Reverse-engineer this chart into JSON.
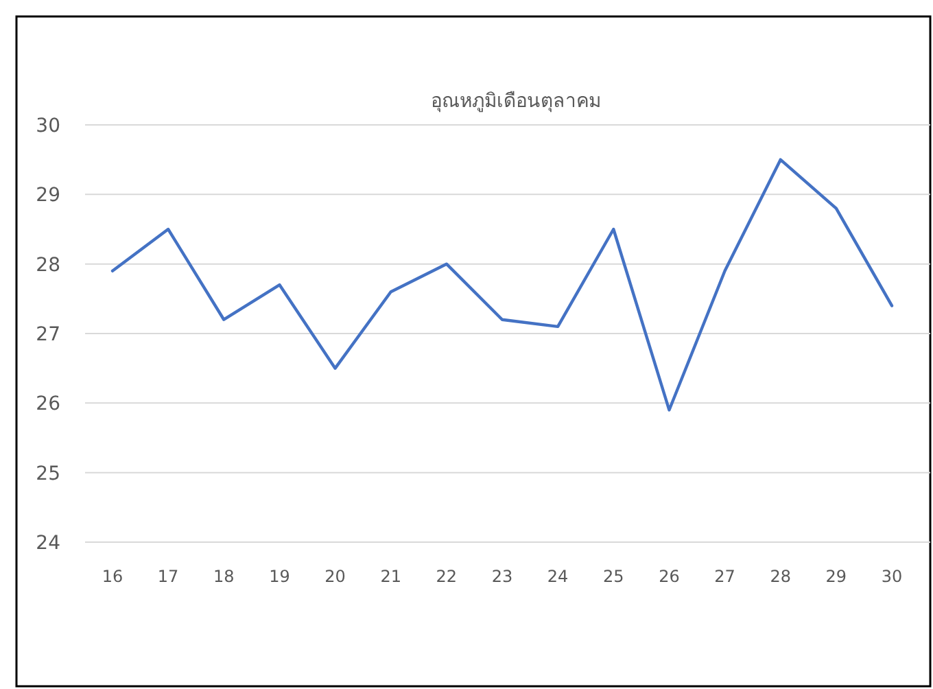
{
  "chart_data": {
    "type": "line",
    "title": "อุณหภูมิเดือนตุลาคม",
    "categories": [
      "16",
      "17",
      "18",
      "19",
      "20",
      "21",
      "22",
      "23",
      "24",
      "25",
      "26",
      "27",
      "28",
      "29",
      "30"
    ],
    "series": [
      {
        "color": "#4472c4",
        "values": [
          27.9,
          28.5,
          27.2,
          27.7,
          26.5,
          27.6,
          28.0,
          27.2,
          27.1,
          28.5,
          25.9,
          27.9,
          29.5,
          28.8,
          27.4
        ]
      }
    ],
    "ylim": [
      24,
      30
    ],
    "yticks": [
      24,
      25,
      26,
      27,
      28,
      29,
      30
    ],
    "grid": "y"
  }
}
